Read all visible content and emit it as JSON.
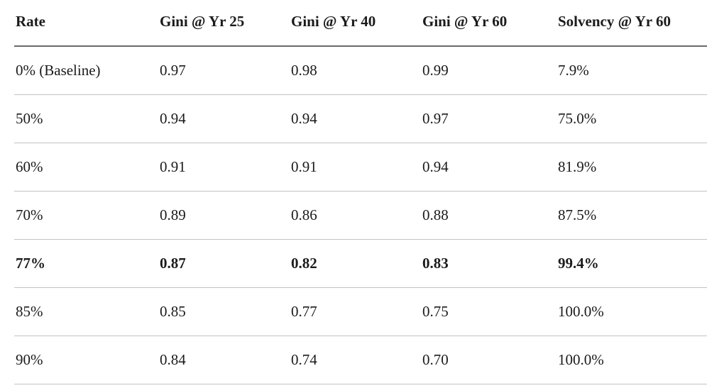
{
  "table": {
    "columns": [
      "Rate",
      "Gini @ Yr 25",
      "Gini @ Yr 40",
      "Gini @ Yr 60",
      "Solvency @ Yr 60"
    ],
    "rows": [
      {
        "cells": [
          "0% (Baseline)",
          "0.97",
          "0.98",
          "0.99",
          "7.9%"
        ],
        "bold": false
      },
      {
        "cells": [
          "50%",
          "0.94",
          "0.94",
          "0.97",
          "75.0%"
        ],
        "bold": false
      },
      {
        "cells": [
          "60%",
          "0.91",
          "0.91",
          "0.94",
          "81.9%"
        ],
        "bold": false
      },
      {
        "cells": [
          "70%",
          "0.89",
          "0.86",
          "0.88",
          "87.5%"
        ],
        "bold": false
      },
      {
        "cells": [
          "77%",
          "0.87",
          "0.82",
          "0.83",
          "99.4%"
        ],
        "bold": true
      },
      {
        "cells": [
          "85%",
          "0.85",
          "0.77",
          "0.75",
          "100.0%"
        ],
        "bold": false
      },
      {
        "cells": [
          "90%",
          "0.84",
          "0.74",
          "0.70",
          "100.0%"
        ],
        "bold": false
      }
    ],
    "colors": {
      "text": "#1b1b1b",
      "header_border": "#6a6a6a",
      "row_border": "#c2c2c2",
      "background": "#ffffff"
    }
  }
}
